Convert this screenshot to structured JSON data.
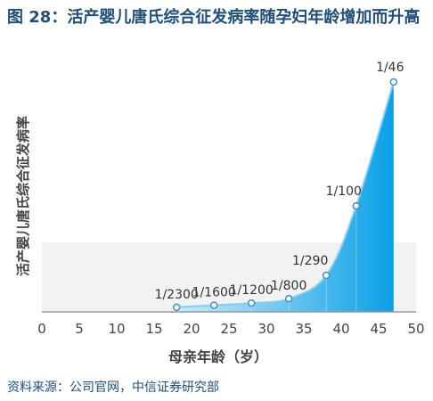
{
  "figure": {
    "title": "图 28：活产婴儿唐氏综合征发病率随孕妇年龄增加而升高",
    "source": "资料来源：公司官网，中信证券研究部"
  },
  "chart_data": {
    "type": "area",
    "xlabel": "母亲年龄（岁）",
    "ylabel": "活产婴儿唐氏综合征发病率",
    "xlim": [
      0,
      50
    ],
    "xticks": [
      0,
      5,
      10,
      15,
      20,
      25,
      30,
      35,
      40,
      45,
      50
    ],
    "points": [
      {
        "x": 18,
        "y": 0.000435,
        "label": "1/2300"
      },
      {
        "x": 23,
        "y": 0.000625,
        "label": "1/1600"
      },
      {
        "x": 28,
        "y": 0.000833,
        "label": "1/1200"
      },
      {
        "x": 33,
        "y": 0.00125,
        "label": "1/800"
      },
      {
        "x": 38,
        "y": 0.00345,
        "label": "1/290"
      },
      {
        "x": 42,
        "y": 0.01,
        "label": "1/100"
      },
      {
        "x": 47,
        "y": 0.0217,
        "label": "1/46"
      }
    ],
    "colors": {
      "light": "#bfe3f7",
      "dark": "#0aa0e6",
      "line": "#7fd0f5",
      "marker": "#3f8fc8",
      "axis": "#9a9a9a"
    }
  }
}
